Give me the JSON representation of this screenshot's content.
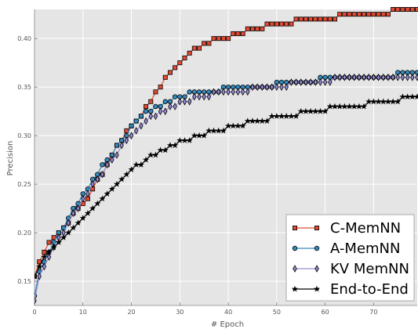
{
  "chart_data": {
    "type": "line",
    "title": "",
    "xlabel": "# Epoch",
    "ylabel": "Precision",
    "xlim": [
      0,
      79
    ],
    "ylim": [
      0.125,
      0.43
    ],
    "x_ticks": [
      0,
      10,
      20,
      30,
      40,
      50,
      60,
      70
    ],
    "x_tick_labels": [
      "0",
      "10",
      "20",
      "30",
      "40",
      "50",
      "60",
      "70"
    ],
    "y_ticks": [
      0.15,
      0.2,
      0.25,
      0.3,
      0.35,
      0.4
    ],
    "y_tick_labels": [
      "0.15",
      "0.20",
      "0.25",
      "0.30",
      "0.35",
      "0.40"
    ],
    "grid": true,
    "legend_position": "lower-right",
    "background_color": "#e5e5e5",
    "grid_color": "#ffffff",
    "series": [
      {
        "name": "C-MemNN",
        "marker": "square",
        "color": "#e24a33",
        "x": [
          0,
          1,
          2,
          3,
          4,
          5,
          6,
          7,
          8,
          9,
          10,
          11,
          12,
          13,
          14,
          15,
          16,
          17,
          18,
          19,
          20,
          21,
          22,
          23,
          24,
          25,
          26,
          27,
          28,
          29,
          30,
          31,
          32,
          33,
          34,
          35,
          36,
          37,
          38,
          39,
          40,
          41,
          42,
          43,
          44,
          45,
          46,
          47,
          48,
          49,
          50,
          51,
          52,
          53,
          54,
          55,
          56,
          57,
          58,
          59,
          60,
          61,
          62,
          63,
          64,
          65,
          66,
          67,
          68,
          69,
          70,
          71,
          72,
          73,
          74,
          75,
          76,
          77,
          78,
          79
        ],
        "values": [
          0.155,
          0.17,
          0.18,
          0.19,
          0.195,
          0.2,
          0.205,
          0.21,
          0.22,
          0.225,
          0.23,
          0.235,
          0.245,
          0.255,
          0.26,
          0.27,
          0.28,
          0.29,
          0.295,
          0.305,
          0.31,
          0.315,
          0.32,
          0.33,
          0.335,
          0.345,
          0.35,
          0.36,
          0.365,
          0.37,
          0.375,
          0.38,
          0.385,
          0.39,
          0.39,
          0.395,
          0.395,
          0.4,
          0.4,
          0.4,
          0.4,
          0.405,
          0.405,
          0.405,
          0.41,
          0.41,
          0.41,
          0.41,
          0.415,
          0.415,
          0.415,
          0.415,
          0.415,
          0.415,
          0.42,
          0.42,
          0.42,
          0.42,
          0.42,
          0.42,
          0.42,
          0.42,
          0.42,
          0.425,
          0.425,
          0.425,
          0.425,
          0.425,
          0.425,
          0.425,
          0.425,
          0.425,
          0.425,
          0.425,
          0.43,
          0.43,
          0.43,
          0.43,
          0.43,
          0.43
        ]
      },
      {
        "name": "A-MemNN",
        "marker": "circle",
        "color": "#348abd",
        "x": [
          0,
          1,
          2,
          3,
          4,
          5,
          6,
          7,
          8,
          9,
          10,
          11,
          12,
          13,
          14,
          15,
          16,
          17,
          18,
          19,
          20,
          21,
          22,
          23,
          24,
          25,
          26,
          27,
          28,
          29,
          30,
          31,
          32,
          33,
          34,
          35,
          36,
          37,
          38,
          39,
          40,
          41,
          42,
          43,
          44,
          45,
          46,
          47,
          48,
          49,
          50,
          51,
          52,
          53,
          54,
          55,
          56,
          57,
          58,
          59,
          60,
          61,
          62,
          63,
          64,
          65,
          66,
          67,
          68,
          69,
          70,
          71,
          72,
          73,
          74,
          75,
          76,
          77,
          78,
          79
        ],
        "values": [
          0.135,
          0.16,
          0.17,
          0.18,
          0.19,
          0.2,
          0.205,
          0.215,
          0.225,
          0.23,
          0.24,
          0.245,
          0.255,
          0.26,
          0.27,
          0.275,
          0.28,
          0.29,
          0.295,
          0.3,
          0.31,
          0.315,
          0.32,
          0.325,
          0.325,
          0.33,
          0.33,
          0.335,
          0.335,
          0.34,
          0.34,
          0.34,
          0.345,
          0.345,
          0.345,
          0.345,
          0.345,
          0.345,
          0.345,
          0.35,
          0.35,
          0.35,
          0.35,
          0.35,
          0.35,
          0.35,
          0.35,
          0.35,
          0.35,
          0.35,
          0.355,
          0.355,
          0.355,
          0.355,
          0.355,
          0.355,
          0.355,
          0.355,
          0.355,
          0.36,
          0.36,
          0.36,
          0.36,
          0.36,
          0.36,
          0.36,
          0.36,
          0.36,
          0.36,
          0.36,
          0.36,
          0.36,
          0.36,
          0.36,
          0.36,
          0.365,
          0.365,
          0.365,
          0.365,
          0.365
        ]
      },
      {
        "name": "KV MemNN",
        "marker": "thin-diamond",
        "color": "#988ed5",
        "x": [
          0,
          1,
          2,
          3,
          4,
          5,
          6,
          7,
          8,
          9,
          10,
          11,
          12,
          13,
          14,
          15,
          16,
          17,
          18,
          19,
          20,
          21,
          22,
          23,
          24,
          25,
          26,
          27,
          28,
          29,
          30,
          31,
          32,
          33,
          34,
          35,
          36,
          37,
          38,
          39,
          40,
          41,
          42,
          43,
          44,
          45,
          46,
          47,
          48,
          49,
          50,
          51,
          52,
          53,
          54,
          55,
          56,
          57,
          58,
          59,
          60,
          61,
          62,
          63,
          64,
          65,
          66,
          67,
          68,
          69,
          70,
          71,
          72,
          73,
          74,
          75,
          76,
          77,
          78,
          79
        ],
        "values": [
          0.13,
          0.155,
          0.165,
          0.175,
          0.185,
          0.195,
          0.2,
          0.21,
          0.22,
          0.225,
          0.235,
          0.24,
          0.25,
          0.255,
          0.26,
          0.27,
          0.275,
          0.28,
          0.29,
          0.295,
          0.3,
          0.305,
          0.31,
          0.315,
          0.32,
          0.32,
          0.325,
          0.325,
          0.33,
          0.33,
          0.335,
          0.335,
          0.335,
          0.34,
          0.34,
          0.34,
          0.34,
          0.345,
          0.345,
          0.345,
          0.345,
          0.345,
          0.345,
          0.345,
          0.345,
          0.35,
          0.35,
          0.35,
          0.35,
          0.35,
          0.35,
          0.35,
          0.35,
          0.355,
          0.355,
          0.355,
          0.355,
          0.355,
          0.355,
          0.355,
          0.355,
          0.355,
          0.36,
          0.36,
          0.36,
          0.36,
          0.36,
          0.36,
          0.36,
          0.36,
          0.36,
          0.36,
          0.36,
          0.36,
          0.36,
          0.36,
          0.36,
          0.36,
          0.36,
          0.36
        ]
      },
      {
        "name": "End-to-End",
        "marker": "star",
        "color": "#000000",
        "x": [
          0,
          1,
          2,
          3,
          4,
          5,
          6,
          7,
          8,
          9,
          10,
          11,
          12,
          13,
          14,
          15,
          16,
          17,
          18,
          19,
          20,
          21,
          22,
          23,
          24,
          25,
          26,
          27,
          28,
          29,
          30,
          31,
          32,
          33,
          34,
          35,
          36,
          37,
          38,
          39,
          40,
          41,
          42,
          43,
          44,
          45,
          46,
          47,
          48,
          49,
          50,
          51,
          52,
          53,
          54,
          55,
          56,
          57,
          58,
          59,
          60,
          61,
          62,
          63,
          64,
          65,
          66,
          67,
          68,
          69,
          70,
          71,
          72,
          73,
          74,
          75,
          76,
          77,
          78,
          79
        ],
        "values": [
          0.155,
          0.165,
          0.175,
          0.18,
          0.185,
          0.19,
          0.195,
          0.2,
          0.205,
          0.21,
          0.215,
          0.22,
          0.225,
          0.23,
          0.235,
          0.24,
          0.245,
          0.25,
          0.255,
          0.26,
          0.265,
          0.27,
          0.27,
          0.275,
          0.28,
          0.28,
          0.285,
          0.285,
          0.29,
          0.29,
          0.295,
          0.295,
          0.295,
          0.3,
          0.3,
          0.3,
          0.305,
          0.305,
          0.305,
          0.305,
          0.31,
          0.31,
          0.31,
          0.31,
          0.315,
          0.315,
          0.315,
          0.315,
          0.315,
          0.32,
          0.32,
          0.32,
          0.32,
          0.32,
          0.32,
          0.325,
          0.325,
          0.325,
          0.325,
          0.325,
          0.325,
          0.33,
          0.33,
          0.33,
          0.33,
          0.33,
          0.33,
          0.33,
          0.33,
          0.335,
          0.335,
          0.335,
          0.335,
          0.335,
          0.335,
          0.335,
          0.34,
          0.34,
          0.34,
          0.34
        ]
      }
    ]
  }
}
